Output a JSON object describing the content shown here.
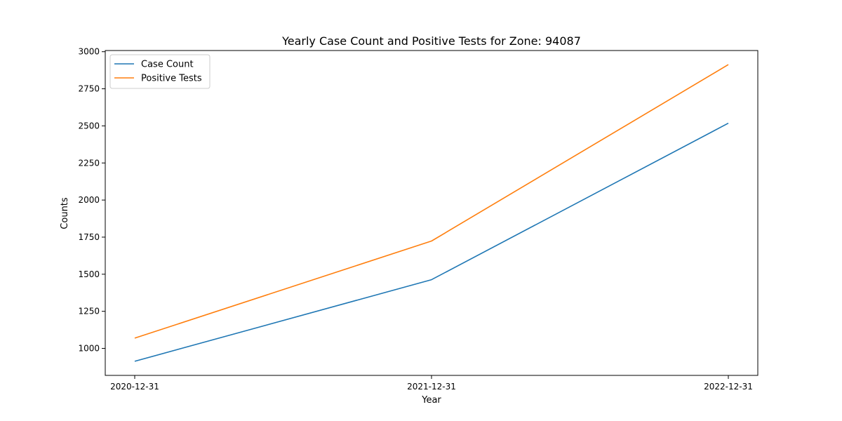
{
  "chart_data": {
    "type": "line",
    "title": "Yearly Case Count and Positive Tests for Zone: 94087",
    "xlabel": "Year",
    "ylabel": "Counts",
    "categories": [
      "2020-12-31",
      "2021-12-31",
      "2022-12-31"
    ],
    "series": [
      {
        "name": "Case Count",
        "color": "#1f77b4",
        "values": [
          913,
          1463,
          2518
        ]
      },
      {
        "name": "Positive Tests",
        "color": "#ff7f0e",
        "values": [
          1069,
          1724,
          2913
        ]
      }
    ],
    "yticks": [
      1000,
      1250,
      1500,
      1750,
      2000,
      2250,
      2500,
      2750,
      3000
    ],
    "ylim": [
      818,
      3008
    ],
    "grid": false,
    "legend": "upper-left"
  }
}
